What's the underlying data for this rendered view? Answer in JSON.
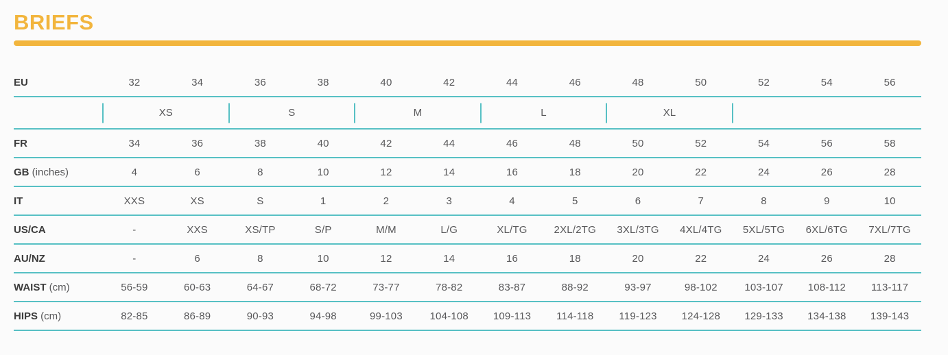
{
  "header": {
    "title": "BRIEFS"
  },
  "colors": {
    "accent_yellow": "#F2B53D",
    "rule_teal": "#57C0C4",
    "label_text": "#3C3C3C",
    "value_text": "#58585A",
    "background": "#FBFBFB"
  },
  "table": {
    "size_group_row": {
      "after_row_index": 0,
      "groups": [
        {
          "label": "XS",
          "span": 2
        },
        {
          "label": "S",
          "span": 2
        },
        {
          "label": "M",
          "span": 2
        },
        {
          "label": "L",
          "span": 2
        },
        {
          "label": "XL",
          "span": 2
        },
        {
          "label": "",
          "span": 3
        }
      ]
    },
    "rows": [
      {
        "label": "EU",
        "unit": "",
        "values": [
          "32",
          "34",
          "36",
          "38",
          "40",
          "42",
          "44",
          "46",
          "48",
          "50",
          "52",
          "54",
          "56"
        ]
      },
      {
        "label": "FR",
        "unit": "",
        "values": [
          "34",
          "36",
          "38",
          "40",
          "42",
          "44",
          "46",
          "48",
          "50",
          "52",
          "54",
          "56",
          "58"
        ]
      },
      {
        "label": "GB",
        "unit": "(inches)",
        "values": [
          "4",
          "6",
          "8",
          "10",
          "12",
          "14",
          "16",
          "18",
          "20",
          "22",
          "24",
          "26",
          "28"
        ]
      },
      {
        "label": "IT",
        "unit": "",
        "values": [
          "XXS",
          "XS",
          "S",
          "1",
          "2",
          "3",
          "4",
          "5",
          "6",
          "7",
          "8",
          "9",
          "10"
        ]
      },
      {
        "label": "US/CA",
        "unit": "",
        "values": [
          "-",
          "XXS",
          "XS/TP",
          "S/P",
          "M/M",
          "L/G",
          "XL/TG",
          "2XL/2TG",
          "3XL/3TG",
          "4XL/4TG",
          "5XL/5TG",
          "6XL/6TG",
          "7XL/7TG"
        ]
      },
      {
        "label": "AU/NZ",
        "unit": "",
        "values": [
          "-",
          "6",
          "8",
          "10",
          "12",
          "14",
          "16",
          "18",
          "20",
          "22",
          "24",
          "26",
          "28"
        ]
      },
      {
        "label": "WAIST",
        "unit": "(cm)",
        "values": [
          "56-59",
          "60-63",
          "64-67",
          "68-72",
          "73-77",
          "78-82",
          "83-87",
          "88-92",
          "93-97",
          "98-102",
          "103-107",
          "108-112",
          "113-117"
        ]
      },
      {
        "label": "HIPS",
        "unit": "(cm)",
        "values": [
          "82-85",
          "86-89",
          "90-93",
          "94-98",
          "99-103",
          "104-108",
          "109-113",
          "114-118",
          "119-123",
          "124-128",
          "129-133",
          "134-138",
          "139-143"
        ]
      }
    ]
  }
}
